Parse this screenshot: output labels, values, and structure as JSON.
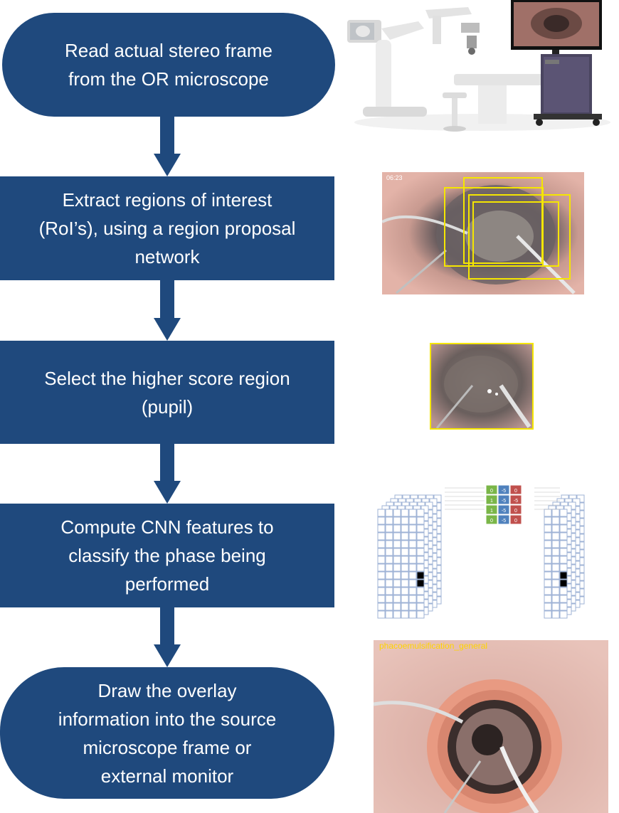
{
  "steps": [
    {
      "id": "read-frame",
      "shape": "pill",
      "lines": [
        "Read actual stereo frame",
        "from the OR microscope"
      ]
    },
    {
      "id": "extract-roi",
      "shape": "rect",
      "lines": [
        "Extract regions of interest",
        "(RoI’s), using a region proposal",
        "network"
      ]
    },
    {
      "id": "select-region",
      "shape": "rect",
      "lines": [
        "Select the higher score region",
        "(pupil)"
      ]
    },
    {
      "id": "compute-cnn",
      "shape": "rect",
      "lines": [
        "Compute CNN features to",
        "classify the phase being",
        "performed"
      ]
    },
    {
      "id": "draw-overlay",
      "shape": "pill",
      "lines": [
        "Draw the overlay",
        "information into the source",
        "microscope frame or",
        "external monitor"
      ]
    }
  ],
  "images": {
    "or_setup": {
      "monitor_icon": "monitor-icon",
      "microscope_icon": "microscope-icon"
    },
    "roi_frame": {
      "timestamp": "06:23",
      "box_color": "#f5e600"
    },
    "pupil_crop": {
      "border_color": "#f5e600"
    },
    "cnn_diagram": {
      "kernel_values": [
        "0",
        "-5",
        "0",
        "1",
        "-5",
        "-5",
        "1",
        "-5",
        "0",
        "0",
        "-5",
        "0"
      ]
    },
    "overlay_frame": {
      "phase_label": "phacoemulsification_general",
      "label_color": "#ffd400"
    }
  },
  "colors": {
    "box": "#1f497d",
    "arrow": "#1f497d",
    "text": "#ffffff"
  }
}
